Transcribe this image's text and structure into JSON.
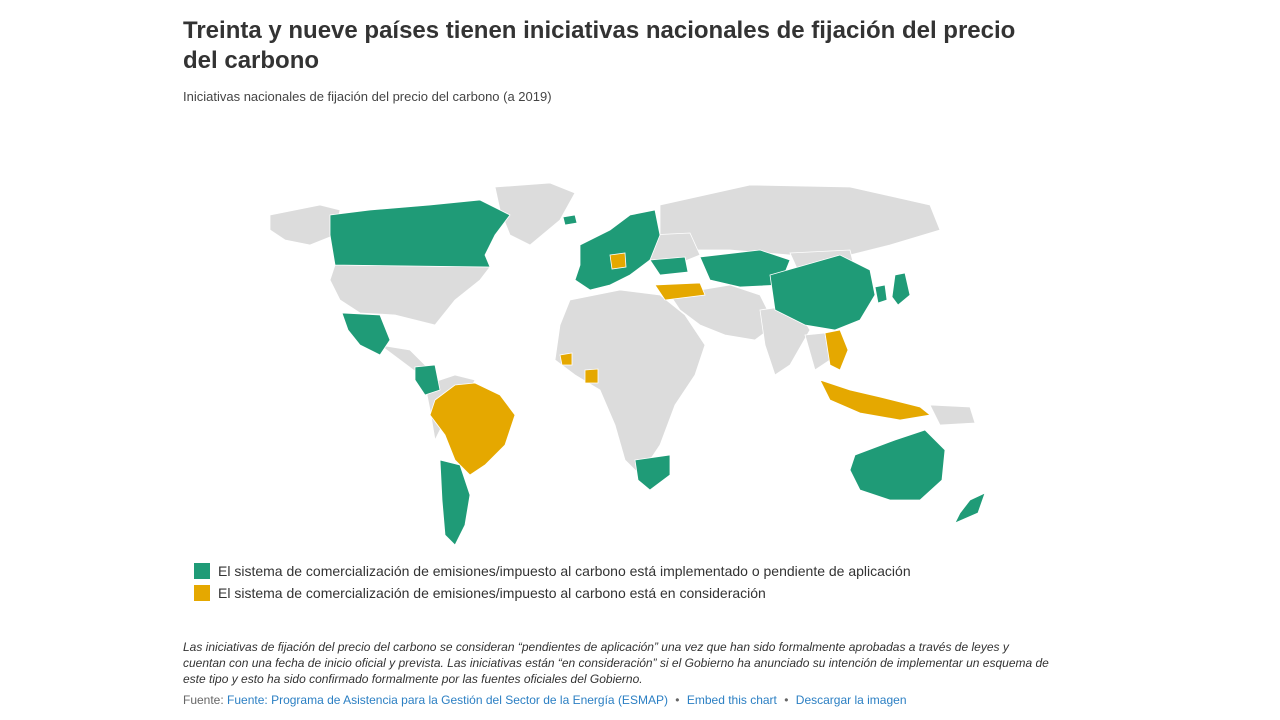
{
  "header": {
    "title": "Treinta y nueve países tienen iniciativas nacionales de fijación del precio del carbono",
    "subtitle": "Iniciativas nacionales de fijación del precio del carbono (a 2019)"
  },
  "colors": {
    "implemented": "#1f9b77",
    "consideration": "#e5a800",
    "other": "#dcdcdc"
  },
  "legend": {
    "implemented_label": "El sistema de comercialización de emisiones/impuesto al carbono está implementado o pendiente de aplicación",
    "consideration_label": "El sistema de comercialización de emisiones/impuesto al carbono está en consideración"
  },
  "note": "Las iniciativas de fijación del precio del carbono se consideran “pendientes de aplicación” una vez que han sido formalmente aprobadas a través de leyes y cuentan con una fecha de inicio oficial y prevista. Las iniciativas están “en consideración” si el Gobierno ha anunciado su intención de implementar un esquema de este tipo y esto ha sido confirmado formalmente por las fuentes oficiales del Gobierno.",
  "source": {
    "prefix": "Fuente:",
    "source_link": "Fuente: Programa de Asistencia para la Gestión del Sector de la Energía (ESMAP)",
    "embed_link": "Embed this chart",
    "download_link": "Descargar la imagen",
    "separator": "•"
  }
}
